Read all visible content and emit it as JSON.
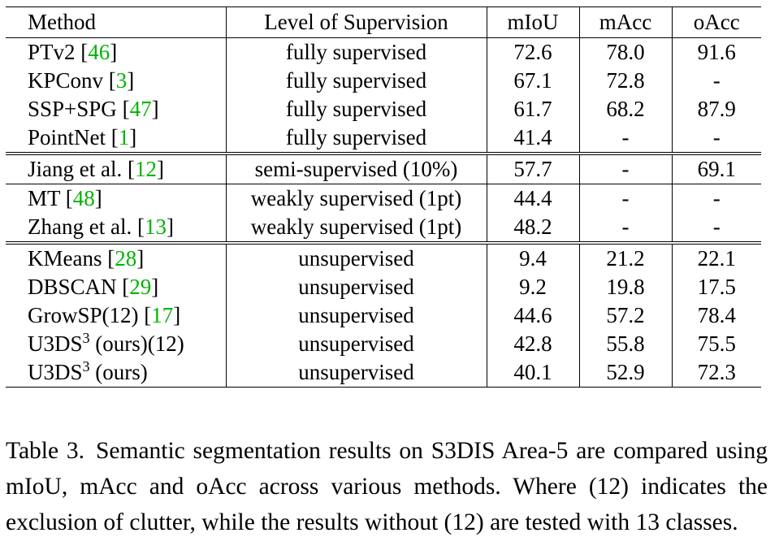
{
  "table": {
    "headers": [
      "Method",
      "Level of Supervision",
      "mIoU",
      "mAcc",
      "oAcc"
    ],
    "groups": [
      {
        "rows": [
          {
            "method": "PTv2",
            "sup": "",
            "suffix": "",
            "cite": "46",
            "level": "fully supervised",
            "miou": "72.6",
            "macc": "78.0",
            "oacc": "91.6",
            "bold": false
          },
          {
            "method": "KPConv",
            "sup": "",
            "suffix": "",
            "cite": "3",
            "level": "fully supervised",
            "miou": "67.1",
            "macc": "72.8",
            "oacc": "-",
            "bold": false
          },
          {
            "method": "SSP+SPG",
            "sup": "",
            "suffix": "",
            "cite": "47",
            "level": "fully supervised",
            "miou": "61.7",
            "macc": "68.2",
            "oacc": "87.9",
            "bold": false
          },
          {
            "method": "PointNet",
            "sup": "",
            "suffix": "",
            "cite": "1",
            "level": "fully supervised",
            "miou": "41.4",
            "macc": "-",
            "oacc": "-",
            "bold": false
          }
        ]
      },
      {
        "rows": [
          {
            "method": "Jiang et al.",
            "sup": "",
            "suffix": "",
            "cite": "12",
            "level": "semi-supervised (10%)",
            "miou": "57.7",
            "macc": "-",
            "oacc": "69.1",
            "bold": false
          }
        ]
      },
      {
        "rows": [
          {
            "method": "MT",
            "sup": "",
            "suffix": "",
            "cite": "48",
            "level": "weakly supervised (1pt)",
            "miou": "44.4",
            "macc": "-",
            "oacc": "-",
            "bold": false
          },
          {
            "method": "Zhang et al.",
            "sup": "",
            "suffix": "",
            "cite": "13",
            "level": "weakly supervised (1pt)",
            "miou": "48.2",
            "macc": "-",
            "oacc": "-",
            "bold": false
          }
        ]
      },
      {
        "rows": [
          {
            "method": "KMeans",
            "sup": "",
            "suffix": "",
            "cite": "28",
            "level": "unsupervised",
            "miou": "9.4",
            "macc": "21.2",
            "oacc": "22.1",
            "bold": false
          },
          {
            "method": "DBSCAN",
            "sup": "",
            "suffix": "",
            "cite": "29",
            "level": "unsupervised",
            "miou": "9.2",
            "macc": "19.8",
            "oacc": "17.5",
            "bold": false
          },
          {
            "method": "GrowSP(12)",
            "sup": "",
            "suffix": "",
            "cite": "17",
            "level": "unsupervised",
            "miou": "44.6",
            "macc": "57.2",
            "oacc": "78.4",
            "bold": true
          },
          {
            "method": "U3DS",
            "sup": "3",
            "suffix": " (ours)(12)",
            "cite": "",
            "level": "unsupervised",
            "miou": "42.8",
            "macc": "55.8",
            "oacc": "75.5",
            "bold": false
          },
          {
            "method": "U3DS",
            "sup": "3",
            "suffix": " (ours)",
            "cite": "",
            "level": "unsupervised",
            "miou": "40.1",
            "macc": "52.9",
            "oacc": "72.3",
            "bold": false
          }
        ]
      }
    ]
  },
  "caption": {
    "label": "Table 3.",
    "text": "Semantic segmentation results on S3DIS Area-5 are compared using mIoU, mAcc and oAcc across various methods. Where (12) indicates the exclusion of clutter, while the results without (12) are tested with 13 classes."
  }
}
